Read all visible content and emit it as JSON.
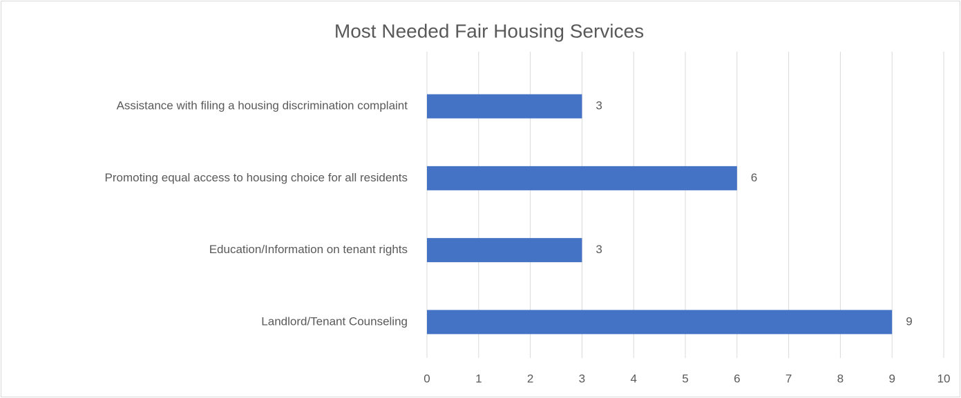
{
  "chart_data": {
    "type": "bar",
    "orientation": "horizontal",
    "title": "Most Needed Fair Housing Services",
    "categories": [
      "Assistance with filing a housing discrimination complaint",
      "Promoting equal access to housing choice for all residents",
      "Education/Information on tenant rights",
      "Landlord/Tenant Counseling"
    ],
    "values": [
      3,
      6,
      3,
      9
    ],
    "color": "#4472c4",
    "xlim": [
      0,
      10
    ],
    "xticks": [
      0,
      1,
      2,
      3,
      4,
      5,
      6,
      7,
      8,
      9,
      10
    ],
    "grid": true,
    "data_labels": true
  }
}
